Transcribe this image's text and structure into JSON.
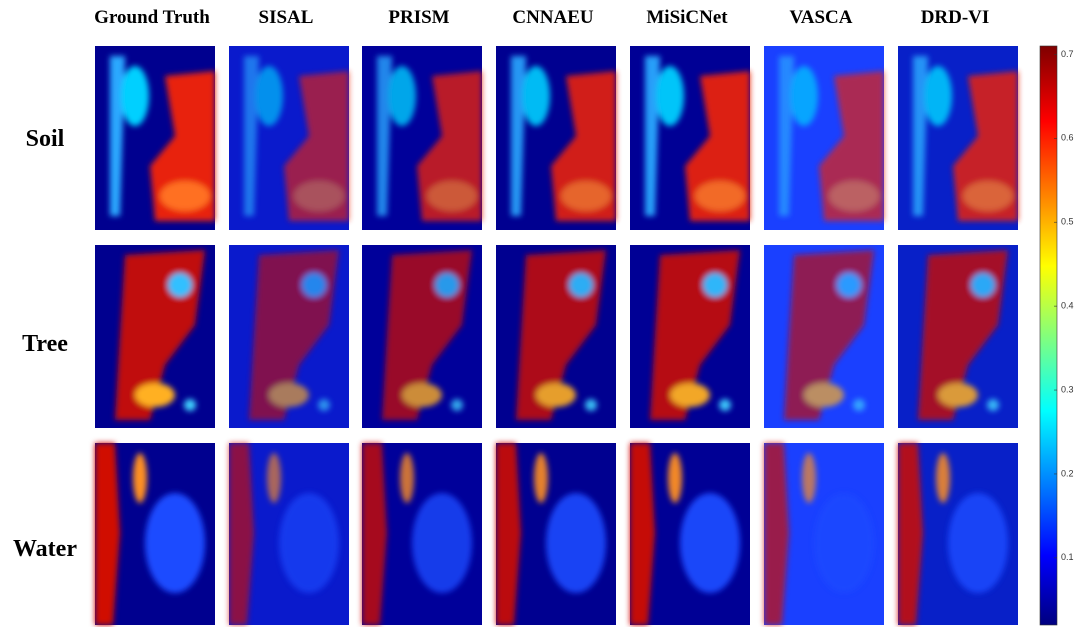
{
  "columns": [
    "Ground Truth",
    "SISAL",
    "PRISM",
    "CNNAEU",
    "MiSiCNet",
    "VASCA",
    "DRD-VI"
  ],
  "rows": [
    "Soil",
    "Tree",
    "Water"
  ],
  "colorbar": {
    "lim": [
      0.02,
      0.71
    ],
    "ticks": [
      0.1,
      0.2,
      0.3,
      0.4,
      0.5,
      0.6,
      0.7
    ]
  }
}
